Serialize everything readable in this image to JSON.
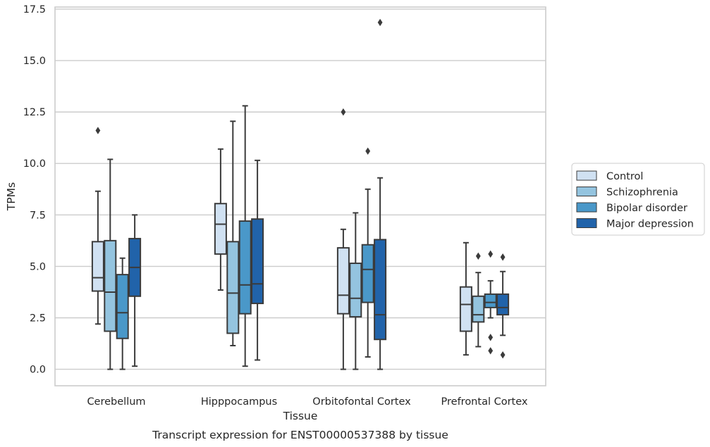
{
  "chart_data": {
    "type": "boxplot",
    "title": "Transcript expression for ENST00000537388 by tissue",
    "xlabel": "Tissue",
    "ylabel": "TPMs",
    "ylim": [
      -0.8,
      17.6
    ],
    "yticks": [
      0.0,
      2.5,
      5.0,
      7.5,
      10.0,
      12.5,
      15.0,
      17.5
    ],
    "ytick_labels": [
      "0.0",
      "2.5",
      "5.0",
      "7.5",
      "10.0",
      "12.5",
      "15.0",
      "17.5"
    ],
    "grid": "horizontal",
    "legend_position": "right",
    "categories": [
      "Cerebellum",
      "Hipppocampus",
      "Orbitofontal Cortex",
      "Prefrontal Cortex"
    ],
    "series": [
      {
        "name": "Control",
        "color": "#d0e1f2",
        "boxes": [
          {
            "whisker_low": 2.2,
            "q1": 3.8,
            "median": 4.45,
            "q3": 6.2,
            "whisker_high": 8.65,
            "outliers": [
              11.6
            ]
          },
          {
            "whisker_low": 3.85,
            "q1": 5.6,
            "median": 7.05,
            "q3": 8.05,
            "whisker_high": 10.7,
            "outliers": []
          },
          {
            "whisker_low": 0.0,
            "q1": 2.7,
            "median": 3.6,
            "q3": 5.9,
            "whisker_high": 6.8,
            "outliers": [
              12.5
            ]
          },
          {
            "whisker_low": 0.7,
            "q1": 1.85,
            "median": 3.15,
            "q3": 4.0,
            "whisker_high": 6.15,
            "outliers": []
          }
        ]
      },
      {
        "name": "Schizophrenia",
        "color": "#94c4df",
        "boxes": [
          {
            "whisker_low": 0.0,
            "q1": 1.85,
            "median": 3.75,
            "q3": 6.25,
            "whisker_high": 10.2,
            "outliers": []
          },
          {
            "whisker_low": 1.15,
            "q1": 1.75,
            "median": 3.7,
            "q3": 6.2,
            "whisker_high": 12.05,
            "outliers": []
          },
          {
            "whisker_low": 0.0,
            "q1": 2.55,
            "median": 3.45,
            "q3": 5.15,
            "whisker_high": 7.6,
            "outliers": []
          },
          {
            "whisker_low": 1.1,
            "q1": 2.3,
            "median": 2.65,
            "q3": 3.55,
            "whisker_high": 4.7,
            "outliers": [
              5.5
            ]
          }
        ]
      },
      {
        "name": "Bipolar disorder",
        "color": "#4a98c9",
        "boxes": [
          {
            "whisker_low": 0.0,
            "q1": 1.5,
            "median": 2.75,
            "q3": 4.6,
            "whisker_high": 5.4,
            "outliers": []
          },
          {
            "whisker_low": 0.15,
            "q1": 2.7,
            "median": 4.1,
            "q3": 7.2,
            "whisker_high": 12.8,
            "outliers": []
          },
          {
            "whisker_low": 0.6,
            "q1": 3.25,
            "median": 4.85,
            "q3": 6.05,
            "whisker_high": 8.75,
            "outliers": [
              10.6
            ]
          },
          {
            "whisker_low": 2.5,
            "q1": 3.0,
            "median": 3.25,
            "q3": 3.65,
            "whisker_high": 4.3,
            "outliers": [
              5.6,
              1.55,
              0.9
            ]
          }
        ]
      },
      {
        "name": "Major depression",
        "color": "#2163aa",
        "boxes": [
          {
            "whisker_low": 0.15,
            "q1": 3.55,
            "median": 4.95,
            "q3": 6.35,
            "whisker_high": 7.5,
            "outliers": []
          },
          {
            "whisker_low": 0.45,
            "q1": 3.2,
            "median": 4.15,
            "q3": 7.3,
            "whisker_high": 10.15,
            "outliers": []
          },
          {
            "whisker_low": 0.0,
            "q1": 1.45,
            "median": 2.65,
            "q3": 6.3,
            "whisker_high": 9.3,
            "outliers": [
              16.85
            ]
          },
          {
            "whisker_low": 1.65,
            "q1": 2.65,
            "median": 3.0,
            "q3": 3.65,
            "whisker_high": 4.75,
            "outliers": [
              5.45,
              0.7
            ]
          }
        ]
      }
    ]
  }
}
